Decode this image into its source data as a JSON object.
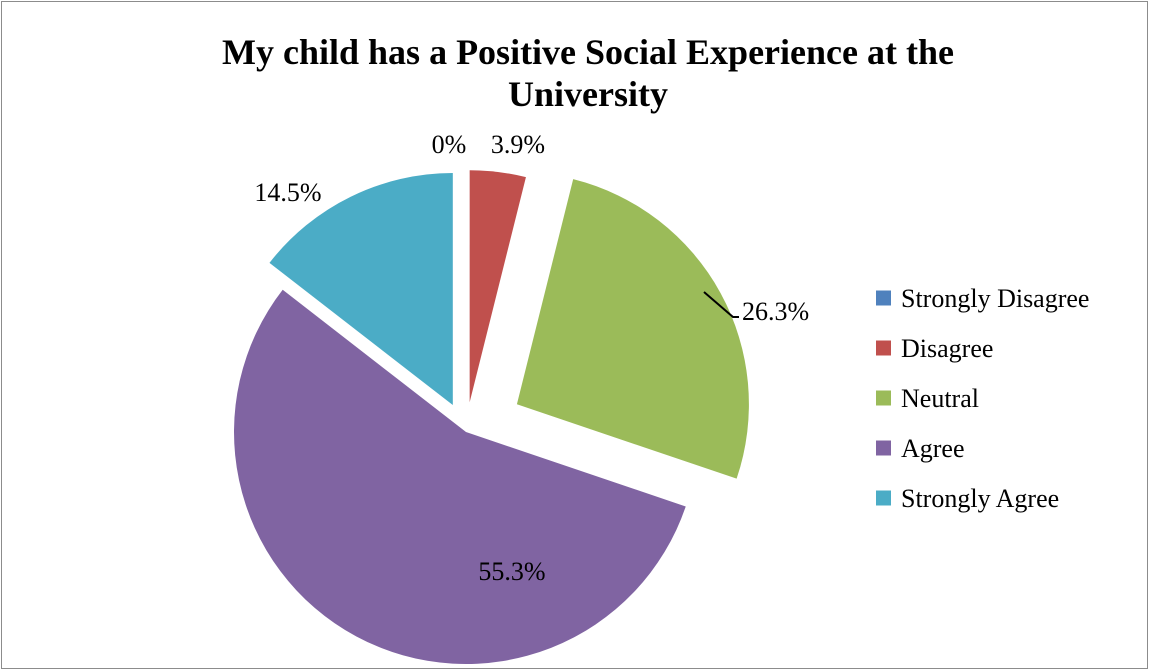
{
  "chart_data": {
    "type": "pie",
    "title_lines": [
      "My child has a Positive Social Experience at the",
      "University"
    ],
    "categories": [
      "Strongly Disagree",
      "Disagree",
      "Neutral",
      "Agree",
      "Strongly Agree"
    ],
    "values": [
      0,
      3.9,
      26.3,
      55.3,
      14.5
    ],
    "labels": [
      "0%",
      "3.9%",
      "26.3%",
      "55.3%",
      "14.5%"
    ],
    "colors": [
      "#4F81BD",
      "#C0504D",
      "#9BBB59",
      "#8064A2",
      "#4BACC6"
    ],
    "exploded": true,
    "legend_position": "right"
  }
}
